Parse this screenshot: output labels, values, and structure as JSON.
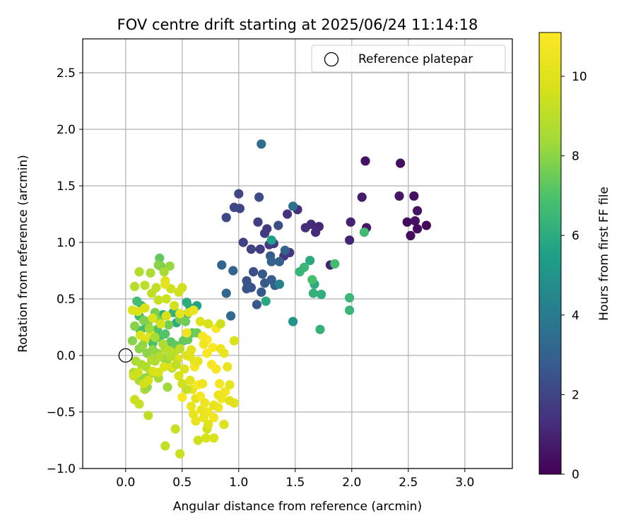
{
  "chart_data": {
    "type": "scatter",
    "title": "FOV centre drift starting at 2025/06/24 11:14:18",
    "xlabel": "Angular distance from reference (arcmin)",
    "ylabel": "Rotation from reference (arcmin)",
    "xlim": [
      -0.38,
      3.42
    ],
    "ylim": [
      -1.0,
      2.8
    ],
    "xticks": [
      "0.0",
      "0.5",
      "1.0",
      "1.5",
      "2.0",
      "2.5",
      "3.0"
    ],
    "yticks": [
      "−1.0",
      "−0.5",
      "0.0",
      "0.5",
      "1.0",
      "1.5",
      "2.0",
      "2.5"
    ],
    "grid": true,
    "legend": {
      "position": "top-right",
      "entries": [
        "Reference platepar"
      ]
    },
    "reference_point": {
      "x": 0.0,
      "y": 0.0
    },
    "colorbar": {
      "label": "Hours from first FF file",
      "range": [
        0,
        11.1
      ],
      "colormap": "viridis",
      "ticks": [
        "0",
        "2",
        "4",
        "6",
        "8",
        "10"
      ]
    },
    "series": [
      {
        "color_by": "hours",
        "points": [
          [
            2.66,
            1.15,
            0.2
          ],
          [
            2.52,
            1.06,
            0.3
          ],
          [
            2.49,
            1.18,
            0.3
          ],
          [
            2.58,
            1.12,
            0.3
          ],
          [
            2.55,
            1.41,
            0.4
          ],
          [
            2.56,
            1.19,
            0.5
          ],
          [
            2.58,
            1.28,
            0.5
          ],
          [
            2.43,
            1.7,
            0.4
          ],
          [
            2.42,
            1.41,
            0.6
          ],
          [
            2.12,
            1.72,
            0.5
          ],
          [
            2.13,
            1.13,
            0.7
          ],
          [
            2.09,
            1.4,
            0.8
          ],
          [
            1.99,
            1.18,
            0.9
          ],
          [
            1.98,
            1.02,
            1.0
          ],
          [
            1.81,
            0.8,
            1.0
          ],
          [
            1.71,
            1.14,
            1.1
          ],
          [
            1.68,
            1.09,
            1.2
          ],
          [
            1.64,
            1.16,
            1.2
          ],
          [
            1.59,
            1.13,
            1.3
          ],
          [
            1.52,
            1.29,
            1.3
          ],
          [
            1.43,
            1.25,
            1.4
          ],
          [
            1.45,
            0.91,
            1.5
          ],
          [
            1.4,
            0.88,
            1.5
          ],
          [
            1.31,
            0.99,
            1.6
          ],
          [
            1.27,
            0.98,
            1.6
          ],
          [
            1.25,
            1.12,
            1.7
          ],
          [
            1.23,
            1.08,
            1.7
          ],
          [
            1.17,
            1.18,
            1.8
          ],
          [
            1.19,
            0.94,
            1.8
          ],
          [
            1.11,
            0.94,
            1.9
          ],
          [
            1.04,
            1.0,
            1.9
          ],
          [
            1.0,
            1.43,
            2.0
          ],
          [
            1.01,
            1.3,
            2.0
          ],
          [
            0.96,
            1.31,
            2.1
          ],
          [
            0.89,
            1.22,
            2.1
          ],
          [
            1.18,
            1.4,
            2.2
          ],
          [
            1.35,
            1.15,
            2.3
          ],
          [
            1.13,
            0.74,
            2.3
          ],
          [
            1.08,
            0.62,
            2.4
          ],
          [
            1.07,
            0.66,
            2.4
          ],
          [
            1.07,
            0.59,
            2.5
          ],
          [
            1.11,
            0.6,
            2.5
          ],
          [
            1.16,
            0.45,
            2.6
          ],
          [
            1.2,
            0.56,
            2.6
          ],
          [
            1.21,
            0.72,
            2.7
          ],
          [
            1.23,
            0.64,
            2.7
          ],
          [
            1.28,
            0.88,
            2.8
          ],
          [
            1.29,
            0.67,
            2.8
          ],
          [
            1.32,
            0.62,
            2.9
          ],
          [
            1.36,
            0.83,
            2.9
          ],
          [
            1.41,
            0.93,
            3.0
          ],
          [
            1.29,
            0.83,
            3.0
          ],
          [
            0.95,
            0.75,
            3.1
          ],
          [
            0.85,
            0.8,
            3.1
          ],
          [
            0.89,
            0.55,
            3.2
          ],
          [
            0.93,
            0.35,
            3.3
          ],
          [
            1.2,
            1.87,
            3.4
          ],
          [
            1.48,
            1.32,
            3.5
          ],
          [
            1.36,
            0.63,
            4.2
          ],
          [
            1.48,
            0.3,
            5.0
          ],
          [
            1.29,
            1.02,
            5.5
          ],
          [
            1.24,
            0.48,
            5.8
          ],
          [
            1.63,
            0.84,
            5.9
          ],
          [
            1.67,
            0.63,
            6.0
          ],
          [
            1.73,
            0.54,
            6.1
          ],
          [
            1.66,
            0.55,
            6.2
          ],
          [
            1.72,
            0.23,
            6.3
          ],
          [
            1.98,
            0.4,
            6.4
          ],
          [
            1.98,
            0.51,
            6.5
          ],
          [
            2.11,
            1.09,
            6.6
          ],
          [
            1.85,
            0.81,
            6.7
          ],
          [
            1.65,
            0.67,
            6.8
          ],
          [
            1.58,
            0.78,
            6.5
          ],
          [
            1.54,
            0.74,
            6.4
          ],
          [
            0.63,
            0.44,
            5.7
          ],
          [
            0.57,
            0.42,
            5.9
          ],
          [
            0.54,
            0.47,
            6.0
          ],
          [
            0.45,
            0.29,
            6.0
          ],
          [
            0.47,
            0.37,
            6.1
          ],
          [
            0.55,
            0.37,
            6.1
          ],
          [
            0.42,
            0.38,
            6.2
          ],
          [
            0.33,
            0.36,
            6.2
          ],
          [
            0.12,
            0.35,
            6.5
          ],
          [
            0.14,
            0.44,
            6.6
          ],
          [
            0.1,
            0.48,
            6.8
          ],
          [
            0.13,
            0.22,
            6.7
          ],
          [
            0.18,
            0.25,
            6.8
          ],
          [
            0.22,
            0.14,
            6.9
          ],
          [
            0.24,
            0.11,
            6.9
          ],
          [
            0.28,
            0.23,
            7.0
          ],
          [
            0.3,
            0.16,
            7.0
          ],
          [
            0.35,
            0.19,
            7.1
          ],
          [
            0.4,
            0.12,
            7.2
          ],
          [
            0.44,
            0.09,
            7.3
          ],
          [
            0.51,
            0.13,
            7.3
          ],
          [
            0.55,
            0.14,
            7.4
          ],
          [
            0.59,
            0.2,
            7.4
          ],
          [
            0.63,
            0.2,
            7.5
          ],
          [
            0.53,
            0.3,
            7.5
          ],
          [
            0.48,
            0.32,
            7.6
          ],
          [
            0.38,
            0.27,
            7.6
          ],
          [
            0.3,
            0.31,
            7.7
          ],
          [
            0.26,
            0.38,
            7.7
          ],
          [
            0.2,
            0.3,
            7.8
          ],
          [
            0.16,
            0.31,
            7.8
          ],
          [
            0.08,
            0.26,
            7.9
          ],
          [
            0.06,
            0.13,
            7.9
          ],
          [
            0.12,
            0.06,
            8.0
          ],
          [
            0.19,
            0.02,
            8.0
          ],
          [
            0.24,
            0.05,
            8.1
          ],
          [
            0.28,
            0.02,
            8.1
          ],
          [
            0.33,
            -0.02,
            8.2
          ],
          [
            0.37,
            -0.08,
            8.2
          ],
          [
            0.41,
            -0.11,
            8.3
          ],
          [
            0.37,
            -0.28,
            8.3
          ],
          [
            0.29,
            -0.2,
            8.4
          ],
          [
            0.22,
            -0.16,
            8.4
          ],
          [
            0.17,
            -0.3,
            8.5
          ],
          [
            0.12,
            -0.22,
            8.5
          ],
          [
            0.07,
            -0.15,
            8.6
          ],
          [
            0.09,
            -0.05,
            8.6
          ],
          [
            0.14,
            -0.08,
            8.7
          ],
          [
            0.18,
            -0.1,
            8.7
          ],
          [
            0.23,
            -0.04,
            8.8
          ],
          [
            0.26,
            -0.05,
            8.8
          ],
          [
            0.3,
            -0.01,
            8.9
          ],
          [
            0.35,
            0.06,
            8.9
          ],
          [
            0.39,
            0.04,
            9.0
          ],
          [
            0.43,
            0.02,
            9.0
          ],
          [
            0.48,
            0.06,
            9.1
          ],
          [
            0.3,
            0.86,
            7.3
          ],
          [
            0.31,
            0.79,
            7.6
          ],
          [
            0.29,
            0.8,
            7.9
          ],
          [
            0.39,
            0.79,
            8.2
          ],
          [
            0.34,
            0.74,
            8.5
          ],
          [
            0.22,
            0.73,
            8.7
          ],
          [
            0.12,
            0.74,
            8.8
          ],
          [
            0.08,
            0.61,
            8.9
          ],
          [
            0.17,
            0.62,
            9.0
          ],
          [
            0.23,
            0.55,
            9.1
          ],
          [
            0.27,
            0.6,
            9.2
          ],
          [
            0.29,
            0.49,
            9.3
          ],
          [
            0.36,
            0.5,
            9.4
          ],
          [
            0.4,
            0.59,
            9.5
          ],
          [
            0.47,
            0.56,
            9.5
          ],
          [
            0.5,
            0.6,
            9.6
          ],
          [
            0.43,
            0.44,
            9.6
          ],
          [
            0.36,
            0.35,
            9.7
          ],
          [
            0.31,
            0.28,
            9.7
          ],
          [
            0.24,
            0.33,
            9.8
          ],
          [
            0.17,
            0.42,
            9.8
          ],
          [
            0.11,
            0.39,
            9.9
          ],
          [
            0.06,
            0.4,
            9.9
          ],
          [
            0.13,
            0.18,
            9.9
          ],
          [
            0.17,
            0.14,
            10.0
          ],
          [
            0.22,
            0.19,
            10.0
          ],
          [
            0.35,
            0.66,
            10.0
          ],
          [
            0.35,
            0.63,
            10.1
          ],
          [
            0.17,
            -0.2,
            8.1
          ],
          [
            0.19,
            -0.28,
            8.2
          ],
          [
            0.2,
            -0.53,
            9.1
          ],
          [
            0.12,
            -0.43,
            9.3
          ],
          [
            0.08,
            -0.39,
            9.4
          ],
          [
            0.07,
            -0.18,
            9.4
          ],
          [
            0.11,
            -0.15,
            9.5
          ],
          [
            0.16,
            -0.25,
            9.6
          ],
          [
            0.2,
            -0.22,
            9.7
          ],
          [
            0.24,
            -0.14,
            9.7
          ],
          [
            0.29,
            -0.15,
            9.8
          ],
          [
            0.34,
            -0.1,
            9.8
          ],
          [
            0.41,
            -0.1,
            9.9
          ],
          [
            0.46,
            -0.03,
            9.9
          ],
          [
            0.54,
            0.0,
            10.0
          ],
          [
            0.57,
            -0.01,
            10.0
          ],
          [
            0.61,
            -0.06,
            10.1
          ],
          [
            0.57,
            -0.22,
            10.1
          ],
          [
            0.59,
            -0.3,
            10.2
          ],
          [
            0.62,
            -0.38,
            10.2
          ],
          [
            0.58,
            -0.45,
            10.3
          ],
          [
            0.6,
            -0.52,
            10.3
          ],
          [
            0.62,
            -0.58,
            10.4
          ],
          [
            0.67,
            -0.48,
            10.4
          ],
          [
            0.7,
            -0.42,
            10.5
          ],
          [
            0.73,
            -0.5,
            10.5
          ],
          [
            0.78,
            -0.55,
            10.6
          ],
          [
            0.82,
            -0.46,
            10.6
          ],
          [
            0.85,
            -0.38,
            10.7
          ],
          [
            0.88,
            -0.32,
            10.7
          ],
          [
            0.83,
            -0.25,
            10.8
          ],
          [
            0.8,
            -0.12,
            10.8
          ],
          [
            0.76,
            -0.08,
            10.9
          ],
          [
            0.72,
            0.02,
            10.9
          ],
          [
            0.77,
            0.07,
            11.0
          ],
          [
            0.8,
            0.24,
            11.0
          ],
          [
            0.72,
            0.14,
            11.1
          ],
          [
            0.68,
            0.17,
            10.8
          ],
          [
            0.69,
            0.1,
            10.6
          ],
          [
            0.84,
            0.06,
            10.5
          ],
          [
            0.87,
            0.02,
            10.4
          ],
          [
            0.9,
            -0.1,
            10.3
          ],
          [
            0.92,
            -0.26,
            10.2
          ],
          [
            0.96,
            -0.42,
            10.1
          ],
          [
            0.92,
            -0.4,
            10.0
          ],
          [
            0.87,
            -0.61,
            9.9
          ],
          [
            0.78,
            -0.73,
            9.8
          ],
          [
            0.71,
            -0.73,
            9.7
          ],
          [
            0.72,
            -0.65,
            9.6
          ],
          [
            0.64,
            -0.75,
            9.5
          ],
          [
            0.48,
            -0.87,
            9.4
          ],
          [
            0.44,
            -0.65,
            9.3
          ],
          [
            0.35,
            -0.8,
            9.2
          ],
          [
            0.96,
            0.13,
            9.8
          ],
          [
            0.84,
            0.28,
            9.5
          ],
          [
            0.73,
            0.28,
            9.7
          ],
          [
            0.66,
            0.3,
            9.9
          ],
          [
            0.56,
            0.38,
            10.0
          ],
          [
            0.48,
            0.37,
            10.2
          ],
          [
            0.6,
            0.4,
            10.3
          ],
          [
            0.54,
            0.2,
            10.6
          ],
          [
            0.5,
            -0.37,
            10.9
          ],
          [
            0.64,
            -0.26,
            11.0
          ],
          [
            0.66,
            -0.36,
            10.8
          ],
          [
            0.69,
            -0.55,
            10.4
          ],
          [
            0.73,
            -0.61,
            10.0
          ],
          [
            0.78,
            -0.44,
            10.2
          ],
          [
            0.82,
            -0.35,
            10.4
          ],
          [
            0.61,
            -0.1,
            10.7
          ],
          [
            0.68,
            -0.25,
            10.5
          ],
          [
            0.64,
            -0.05,
            10.3
          ],
          [
            0.58,
            0.05,
            10.1
          ],
          [
            0.52,
            -0.12,
            9.9
          ],
          [
            0.47,
            -0.18,
            9.7
          ],
          [
            0.5,
            -0.25,
            9.5
          ],
          [
            0.54,
            -0.3,
            9.3
          ],
          [
            0.45,
            -0.08,
            9.1
          ],
          [
            0.4,
            -0.01,
            8.9
          ],
          [
            0.33,
            0.1,
            8.7
          ],
          [
            0.26,
            0.16,
            8.5
          ],
          [
            0.21,
            0.24,
            8.3
          ],
          [
            0.15,
            0.09,
            8.1
          ]
        ]
      }
    ]
  }
}
